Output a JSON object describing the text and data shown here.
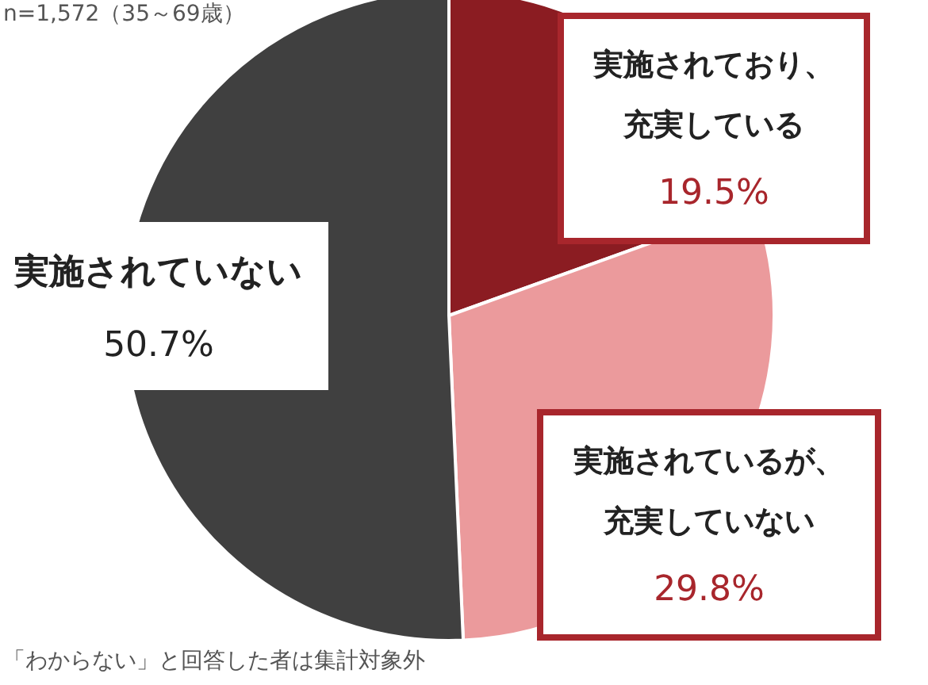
{
  "chart_data": {
    "type": "pie",
    "categories": [
      "実施されており、充実している",
      "実施されているが、充実していない",
      "実施されていない"
    ],
    "values": [
      19.5,
      29.8,
      50.7
    ],
    "value_labels": [
      "19.5%",
      "29.8%",
      "50.7%"
    ],
    "colors": [
      "#8b1c22",
      "#eb9a9c",
      "#404040"
    ],
    "legend": false,
    "annotations": [
      "n=1,572（35～69歳）",
      "「わからない」と回答した者は集計対象外"
    ]
  }
}
